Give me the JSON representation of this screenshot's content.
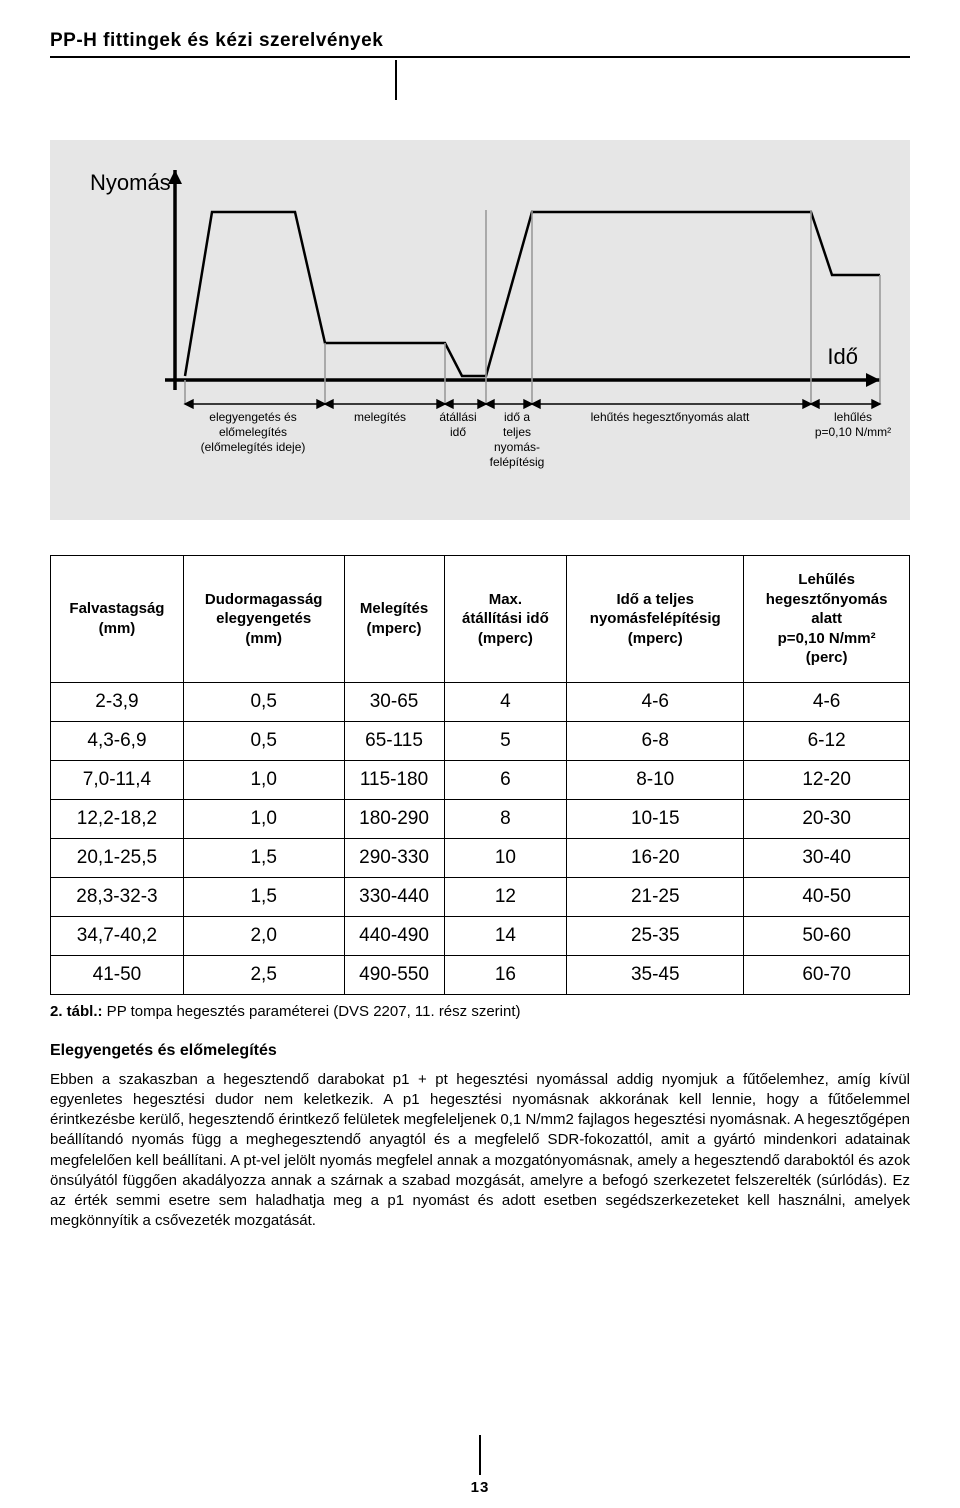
{
  "header": {
    "title": "PP-H fittingek és kézi szerelvények"
  },
  "chart": {
    "bg_color": "#e6e6e6",
    "axis_color": "#000000",
    "curve_color": "#000000",
    "phase_marker_color": "#9a9a9a",
    "ylabel": "Nyomás",
    "xlabel": "Idő",
    "phases": {
      "p1": "elegyengetés és\nelőmelegítés\n(előmelegítés ideje)",
      "p2": "melegítés",
      "p3": "átállási\nidő",
      "p4": "idő a\nteljes\nnyomás-\nfelépítésig",
      "p5": "lehűtés hegesztőnyomás alatt",
      "p6": "lehűlés\np=0,10 N/mm²"
    }
  },
  "table": {
    "headers": {
      "c1": "Falvastagság\n(mm)",
      "c2": "Dudormagasság\nelegyengetés\n(mm)",
      "c3": "Melegítés\n(mperc)",
      "c4": "Max.\nátállítási idő\n(mperc)",
      "c5": "Idő a teljes\nnyomásfelépítésig\n(mperc)",
      "c6": "Lehűlés\nhegesztőnyomás\nalatt\np=0,10 N/mm²\n(perc)"
    },
    "rows": [
      [
        "2-3,9",
        "0,5",
        "30-65",
        "4",
        "4-6",
        "4-6"
      ],
      [
        "4,3-6,9",
        "0,5",
        "65-115",
        "5",
        "6-8",
        "6-12"
      ],
      [
        "7,0-11,4",
        "1,0",
        "115-180",
        "6",
        "8-10",
        "12-20"
      ],
      [
        "12,2-18,2",
        "1,0",
        "180-290",
        "8",
        "10-15",
        "20-30"
      ],
      [
        "20,1-25,5",
        "1,5",
        "290-330",
        "10",
        "16-20",
        "30-40"
      ],
      [
        "28,3-32-3",
        "1,5",
        "330-440",
        "12",
        "21-25",
        "40-50"
      ],
      [
        "34,7-40,2",
        "2,0",
        "440-490",
        "14",
        "25-35",
        "50-60"
      ],
      [
        "41-50",
        "2,5",
        "490-550",
        "16",
        "35-45",
        "60-70"
      ]
    ]
  },
  "caption": {
    "bold": "2. tábl.:",
    "rest": " PP tompa hegesztés paraméterei (DVS 2207, 11. rész szerint)"
  },
  "section": {
    "heading": "Elegyengetés és előmelegítés",
    "body": "Ebben a szakaszban a hegesztendő darabokat p1 + pt hegesztési nyomással addig nyomjuk a fűtőelemhez, amíg kívül egyenletes hegesztési dudor nem keletkezik. A p1 hegesztési nyomásnak akkorának kell lennie, hogy a fűtőelemmel érintkezésbe kerülő, hegesztendő érintkező felületek megfeleljenek 0,1 N/mm2 fajlagos hegesztési nyomásnak. A hegesztőgépen beállítandó nyomás függ a meghegesztendő anyagtól és a megfelelő SDR-fokozattól, amit a gyártó mindenkori adatainak megfelelően kell beállítani. A pt-vel jelölt nyomás megfelel annak a mozgatónyomásnak, amely a hegesztendő daraboktól és azok önsúlyától függően akadályozza annak a szárnak a szabad mozgását, amelyre a befogó szerkezetet felszerelték (súrlódás). Ez az érték semmi esetre sem haladhatja meg a p1 nyomást és adott esetben segédszerkezeteket kell használni, amelyek megkönnyítik a csővezeték mozgatását."
  },
  "page_number": "13"
}
